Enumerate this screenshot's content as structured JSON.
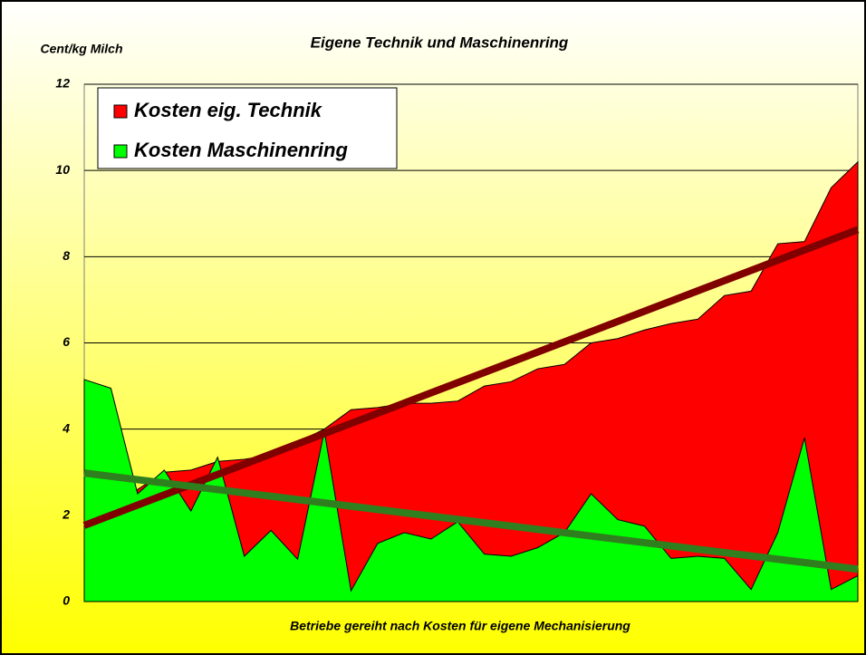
{
  "chart_data": {
    "type": "area",
    "title": "Eigene Technik und Maschinenring",
    "y_label": "Cent/kg Milch",
    "x_label": "Betriebe gereiht nach Kosten für eigene Mechanisierung",
    "categories": [
      null,
      null,
      null,
      null,
      null,
      null,
      null,
      null,
      null,
      null,
      null,
      null,
      null,
      null,
      null,
      null,
      null,
      null,
      null,
      null,
      null,
      null,
      null,
      null,
      null,
      null,
      null,
      null,
      null,
      null
    ],
    "series": [
      {
        "name": "Kosten eig. Technik",
        "color": "#ff0000",
        "trend_color": "#800000",
        "values": [
          1.7,
          1.95,
          2.6,
          3.0,
          3.05,
          3.25,
          3.3,
          3.4,
          3.7,
          4.0,
          4.45,
          4.5,
          4.6,
          4.6,
          4.65,
          5.0,
          5.1,
          5.4,
          5.5,
          6.0,
          6.1,
          6.3,
          6.45,
          6.55,
          7.1,
          7.2,
          8.3,
          8.35,
          9.6,
          10.2
        ]
      },
      {
        "name": "Kosten Maschinenring",
        "color": "#00ff00",
        "trend_color": "#2f7f1f",
        "values": [
          5.15,
          4.95,
          2.5,
          3.05,
          2.1,
          3.35,
          1.05,
          1.65,
          0.98,
          3.95,
          0.25,
          1.35,
          1.6,
          1.45,
          1.85,
          1.1,
          1.05,
          1.25,
          1.6,
          2.5,
          1.9,
          1.75,
          1.0,
          1.05,
          1.0,
          0.28,
          1.6,
          3.8,
          0.28,
          0.6
        ]
      }
    ],
    "trendline": true,
    "ylim": [
      0,
      12
    ],
    "yticks": [
      0,
      2,
      4,
      6,
      8,
      10,
      12
    ],
    "grid": true,
    "legend": "top-left"
  }
}
